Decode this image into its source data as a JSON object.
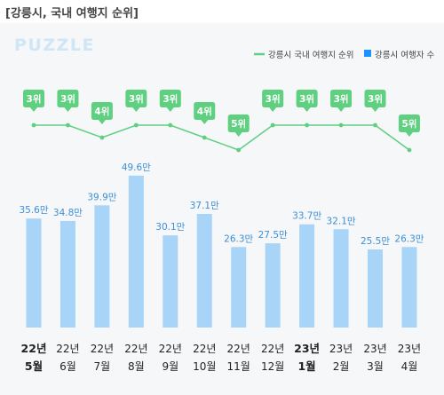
{
  "header": {
    "title": "[강릉시, 국내 여행지 순위]"
  },
  "brand": {
    "logo_text": "PUZZLE",
    "color": "#cfe6f6"
  },
  "colors": {
    "line": "#5fcf80",
    "bar": "#a8d4f8",
    "bar_label": "#3d8fd6",
    "legend_bar": "#1e90ff"
  },
  "chart_data": {
    "type": "bar",
    "categories": [
      {
        "year": "22년",
        "month": "5월",
        "bold": true
      },
      {
        "year": "22년",
        "month": "6월",
        "bold": false
      },
      {
        "year": "22년",
        "month": "7월",
        "bold": false
      },
      {
        "year": "22년",
        "month": "8월",
        "bold": false
      },
      {
        "year": "22년",
        "month": "9월",
        "bold": false
      },
      {
        "year": "22년",
        "month": "10월",
        "bold": false
      },
      {
        "year": "22년",
        "month": "11월",
        "bold": false
      },
      {
        "year": "22년",
        "month": "12월",
        "bold": false
      },
      {
        "year": "23년",
        "month": "1월",
        "bold": true
      },
      {
        "year": "23년",
        "month": "2월",
        "bold": false
      },
      {
        "year": "23년",
        "month": "3월",
        "bold": false
      },
      {
        "year": "23년",
        "month": "4월",
        "bold": false
      }
    ],
    "series": [
      {
        "name": "강릉시 여행자 수",
        "type": "bar",
        "values": [
          35.6,
          34.8,
          39.9,
          49.6,
          30.1,
          37.1,
          26.3,
          27.5,
          33.7,
          32.1,
          25.5,
          26.3
        ],
        "labels": [
          "35.6만",
          "34.8만",
          "39.9만",
          "49.6만",
          "30.1만",
          "37.1만",
          "26.3만",
          "27.5만",
          "33.7만",
          "32.1만",
          "25.5만",
          "26.3만"
        ]
      },
      {
        "name": "강릉시 국내 여행지 순위",
        "type": "line",
        "values": [
          3,
          3,
          4,
          3,
          3,
          4,
          5,
          3,
          3,
          3,
          3,
          5
        ],
        "labels": [
          "3위",
          "3위",
          "4위",
          "3위",
          "3위",
          "4위",
          "5위",
          "3위",
          "3위",
          "3위",
          "3위",
          "5위"
        ]
      }
    ],
    "legend": {
      "position": "top-right"
    },
    "grid": false
  }
}
